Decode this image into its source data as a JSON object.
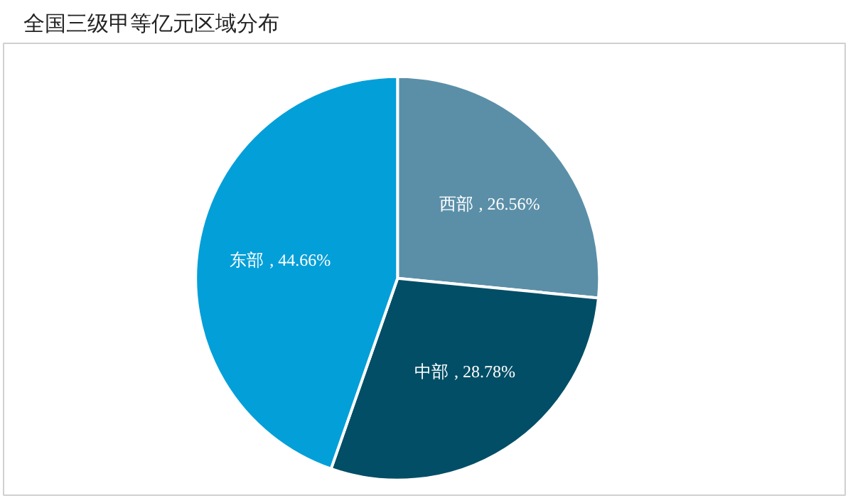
{
  "chart_data": {
    "type": "pie",
    "title": "全国三级甲等亿元区域分布",
    "categories": [
      "西部",
      "中部",
      "东部"
    ],
    "values": [
      26.56,
      28.78,
      44.66
    ],
    "colors": [
      "#5b8fa8",
      "#014e66",
      "#039fd8"
    ],
    "value_labels": [
      ", 26.56%",
      ", 28.78%",
      ", 44.66%"
    ],
    "legend": false
  }
}
